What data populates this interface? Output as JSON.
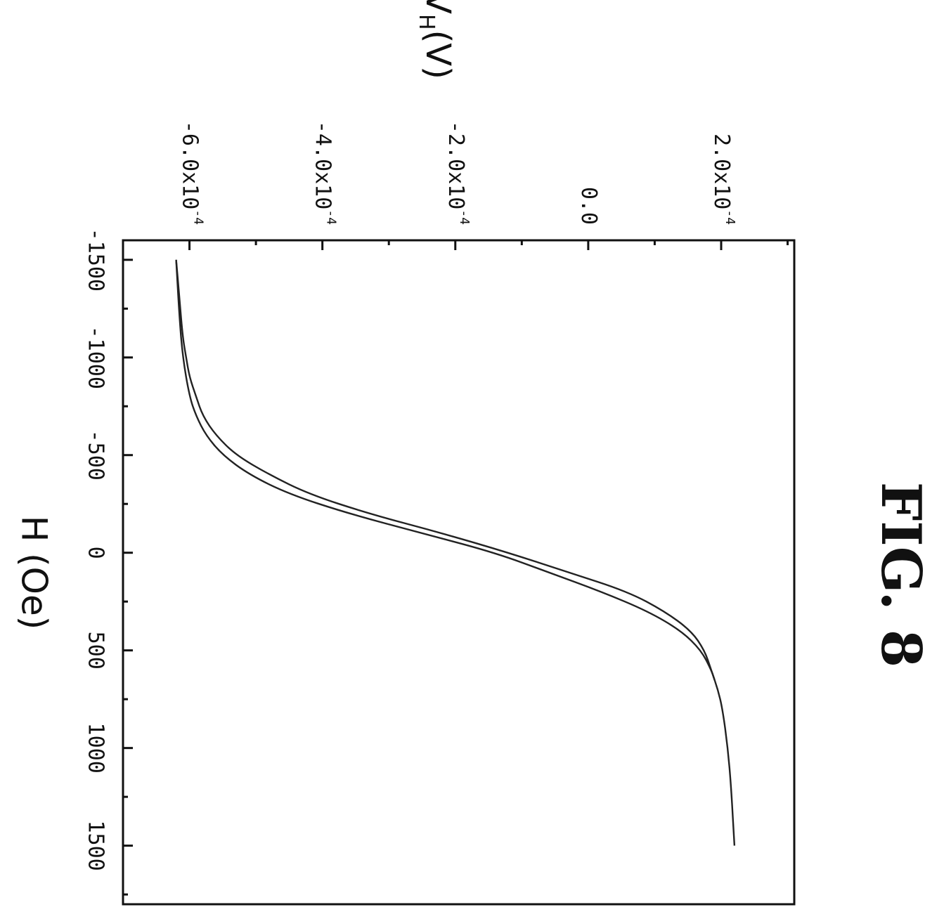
{
  "figure": {
    "label": "FIG. 8"
  },
  "chart_data": {
    "type": "line",
    "xlabel": "H (Oe)",
    "ylabel_main": "V",
    "ylabel_sub": "H",
    "ylabel_unit": "(V)",
    "xlim": [
      -1600,
      1800
    ],
    "ylim": [
      -0.0007,
      0.00031
    ],
    "x_ticks": [
      -1500,
      -1000,
      -500,
      0,
      500,
      1000,
      1500
    ],
    "x_tick_labels": [
      "-1500",
      "-1000",
      "-500",
      "0",
      "500",
      "1000",
      "1500"
    ],
    "y_ticks": [
      -0.0006,
      -0.0004,
      -0.0002,
      0.0,
      0.0002
    ],
    "y_tick_labels": [
      {
        "base": "-6.0x10",
        "exp": "-4"
      },
      {
        "base": "-4.0x10",
        "exp": "-4"
      },
      {
        "base": "-2.0x10",
        "exp": "-4"
      },
      {
        "base": "0.0",
        "exp": ""
      },
      {
        "base": "2.0x10",
        "exp": "-4"
      }
    ],
    "grid": false,
    "orientation": "rotated-90-clockwise",
    "series": [
      {
        "x": [
          -1500,
          -1300,
          -1100,
          -1000,
          -900,
          -800,
          -700,
          -600,
          -500,
          -400,
          -300,
          -200,
          -100,
          0,
          100,
          200,
          300,
          400,
          500,
          600,
          700,
          800,
          1000,
          1200,
          1500
        ],
        "y": [
          -0.00062,
          -0.000615,
          -0.00061,
          -0.000605,
          -0.0006,
          -0.00059,
          -0.00058,
          -0.00056,
          -0.00053,
          -0.00048,
          -0.00042,
          -0.00033,
          -0.00022,
          -0.00012,
          -3e-05,
          6e-05,
          0.000115,
          0.000155,
          0.000175,
          0.000185,
          0.000195,
          0.000202,
          0.00021,
          0.000215,
          0.00022
        ]
      },
      {
        "x": [
          650,
          600,
          500,
          400,
          300,
          200,
          100,
          0,
          -100,
          -200,
          -300,
          -400,
          -500,
          -600,
          -700,
          -800,
          -1000,
          -1200,
          -1500
        ],
        "y": [
          0.00019,
          0.000185,
          0.00017,
          0.00014,
          9e-05,
          2e-05,
          -6e-05,
          -0.00014,
          -0.00025,
          -0.00036,
          -0.00045,
          -0.00051,
          -0.00055,
          -0.000575,
          -0.00059,
          -0.0006,
          -0.00061,
          -0.000615,
          -0.00062
        ]
      }
    ]
  }
}
